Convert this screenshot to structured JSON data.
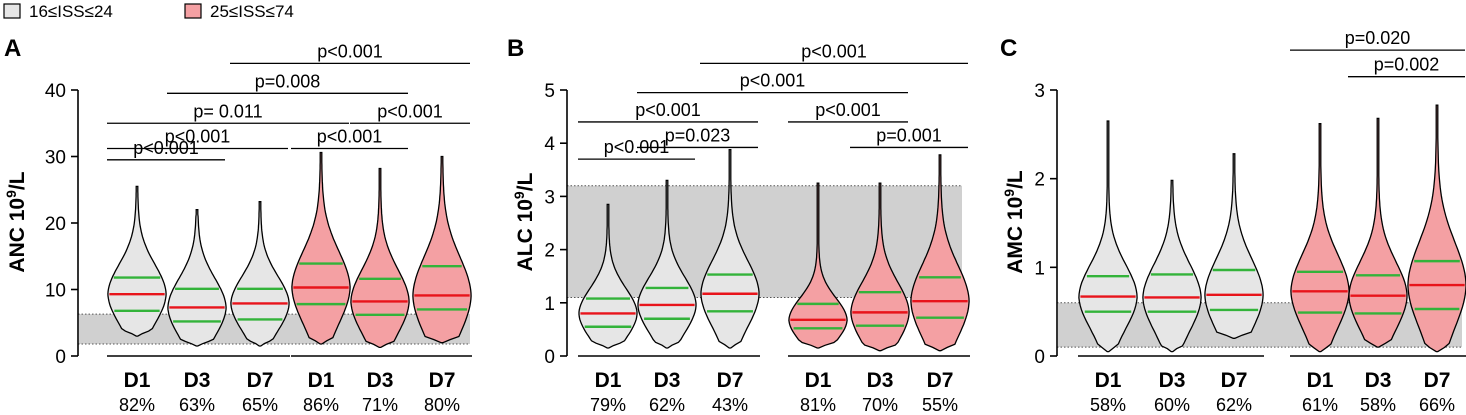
{
  "legend": {
    "items": [
      {
        "label": "16≤ISS≤24",
        "color": "#e6e6e6"
      },
      {
        "label": "25≤ISS≤74",
        "color": "#f4a0a3"
      }
    ]
  },
  "colors": {
    "group1_fill": "#e6e6e6",
    "group2_fill": "#f4a0a3",
    "median_line": "#e8141b",
    "quartile_line": "#33b33a",
    "reference_band": "#d0d0d0"
  },
  "chart_data": [
    {
      "type": "violin",
      "panel_label": "A",
      "ylabel": "ANC 10",
      "ylabel_sup": "9",
      "ylabel_suffix": "/L",
      "ylim": [
        0,
        40
      ],
      "yticks": [
        "0",
        "10",
        "20",
        "30",
        "40"
      ],
      "reference_range": [
        1.8,
        6.3
      ],
      "categories": [
        "D1",
        "D3",
        "D7",
        "D1",
        "D3",
        "D7"
      ],
      "groups": [
        "16≤ISS≤24",
        "16≤ISS≤24",
        "16≤ISS≤24",
        "25≤ISS≤74",
        "25≤ISS≤74",
        "25≤ISS≤74"
      ],
      "percent_labels": [
        "82%",
        "63%",
        "65%",
        "86%",
        "71%",
        "80%"
      ],
      "series": [
        {
          "name": "D1",
          "min": 3,
          "q1": 6.8,
          "median": 9.3,
          "q3": 11.8,
          "max": 25.5
        },
        {
          "name": "D3",
          "min": 1.5,
          "q1": 5.2,
          "median": 7.3,
          "q3": 10.1,
          "max": 22
        },
        {
          "name": "D7",
          "min": 1.5,
          "q1": 5.5,
          "median": 7.9,
          "q3": 10.1,
          "max": 23.2
        },
        {
          "name": "D1",
          "min": 1.8,
          "q1": 7.8,
          "median": 10.3,
          "q3": 13.9,
          "max": 30.6
        },
        {
          "name": "D3",
          "min": 1.3,
          "q1": 6.2,
          "median": 8.2,
          "q3": 11.6,
          "max": 28.2
        },
        {
          "name": "D7",
          "min": 2,
          "q1": 7,
          "median": 9.1,
          "q3": 13.5,
          "max": 30
        }
      ],
      "comparisons": [
        {
          "from": 0,
          "to": 1,
          "label": "p<0.001",
          "y": 29.5
        },
        {
          "from": 0,
          "to": 2,
          "label": "p<0.001",
          "y": 31.2
        },
        {
          "from": 0,
          "to": 3,
          "label": "p= 0.011",
          "y": 35
        },
        {
          "from": 1,
          "to": 4,
          "label": "p=0.008",
          "y": 39.5
        },
        {
          "from": 2,
          "to": 5,
          "label": "p<0.001",
          "y": 44
        },
        {
          "from": 3,
          "to": 4,
          "label": "p<0.001",
          "y": 31.2
        },
        {
          "from": 4,
          "to": 5,
          "label": "p<0.001",
          "y": 35
        }
      ]
    },
    {
      "type": "violin",
      "panel_label": "B",
      "ylabel": "ALC 10",
      "ylabel_sup": "9",
      "ylabel_suffix": "/L",
      "ylim": [
        0,
        5
      ],
      "yticks": [
        "0",
        "1",
        "2",
        "3",
        "4",
        "5"
      ],
      "reference_range": [
        1.1,
        3.2
      ],
      "categories": [
        "D1",
        "D3",
        "D7",
        "D1",
        "D3",
        "D7"
      ],
      "groups": [
        "16≤ISS≤24",
        "16≤ISS≤24",
        "16≤ISS≤24",
        "25≤ISS≤74",
        "25≤ISS≤74",
        "25≤ISS≤74"
      ],
      "percent_labels": [
        "79%",
        "62%",
        "43%",
        "81%",
        "70%",
        "55%"
      ],
      "series": [
        {
          "name": "D1",
          "min": 0.15,
          "q1": 0.55,
          "median": 0.8,
          "q3": 1.08,
          "max": 2.85
        },
        {
          "name": "D3",
          "min": 0.15,
          "q1": 0.7,
          "median": 0.96,
          "q3": 1.28,
          "max": 3.3
        },
        {
          "name": "D7",
          "min": 0.15,
          "q1": 0.84,
          "median": 1.17,
          "q3": 1.53,
          "max": 3.88
        },
        {
          "name": "D1",
          "min": 0.15,
          "q1": 0.52,
          "median": 0.68,
          "q3": 0.98,
          "max": 3.25
        },
        {
          "name": "D3",
          "min": 0.1,
          "q1": 0.57,
          "median": 0.82,
          "q3": 1.2,
          "max": 3.25
        },
        {
          "name": "D7",
          "min": 0.1,
          "q1": 0.72,
          "median": 1.03,
          "q3": 1.48,
          "max": 3.78
        }
      ],
      "comparisons": [
        {
          "from": 0,
          "to": 1,
          "label": "p<0.001",
          "y": 3.7
        },
        {
          "from": 1,
          "to": 2,
          "label": "p=0.023",
          "y": 3.92
        },
        {
          "from": 0,
          "to": 2,
          "label": "p<0.001",
          "y": 4.4
        },
        {
          "from": 1,
          "to": 4,
          "label": "p<0.001",
          "y": 4.95
        },
        {
          "from": 2,
          "to": 5,
          "label": "p<0.001",
          "y": 5.5
        },
        {
          "from": 3,
          "to": 4,
          "label": "p<0.001",
          "y": 4.4
        },
        {
          "from": 4,
          "to": 5,
          "label": "p=0.001",
          "y": 3.92
        }
      ]
    },
    {
      "type": "violin",
      "panel_label": "C",
      "ylabel": "AMC 10",
      "ylabel_sup": "9",
      "ylabel_suffix": "/L",
      "ylim": [
        0,
        3
      ],
      "yticks": [
        "0",
        "1",
        "2",
        "3"
      ],
      "reference_range": [
        0.1,
        0.6
      ],
      "categories": [
        "D1",
        "D3",
        "D7",
        "D1",
        "D3",
        "D7"
      ],
      "groups": [
        "16≤ISS≤24",
        "16≤ISS≤24",
        "16≤ISS≤24",
        "25≤ISS≤74",
        "25≤ISS≤74",
        "25≤ISS≤74"
      ],
      "percent_labels": [
        "58%",
        "60%",
        "62%",
        "61%",
        "58%",
        "66%"
      ],
      "series": [
        {
          "name": "D1",
          "min": 0.05,
          "q1": 0.5,
          "median": 0.67,
          "q3": 0.9,
          "max": 2.65
        },
        {
          "name": "D3",
          "min": 0.05,
          "q1": 0.5,
          "median": 0.66,
          "q3": 0.92,
          "max": 1.98
        },
        {
          "name": "D7",
          "min": 0.2,
          "q1": 0.52,
          "median": 0.69,
          "q3": 0.97,
          "max": 2.28
        },
        {
          "name": "D1",
          "min": 0.05,
          "q1": 0.49,
          "median": 0.73,
          "q3": 0.95,
          "max": 2.62
        },
        {
          "name": "D3",
          "min": 0.1,
          "q1": 0.48,
          "median": 0.68,
          "q3": 0.91,
          "max": 2.68
        },
        {
          "name": "D7",
          "min": 0.05,
          "q1": 0.53,
          "median": 0.8,
          "q3": 1.07,
          "max": 2.83
        }
      ],
      "comparisons": [
        {
          "from": 4,
          "to": 5,
          "label": "p=0.002",
          "y": 3.15
        },
        {
          "from": 3,
          "to": 5,
          "label": "p=0.020",
          "y": 3.45
        }
      ]
    }
  ]
}
